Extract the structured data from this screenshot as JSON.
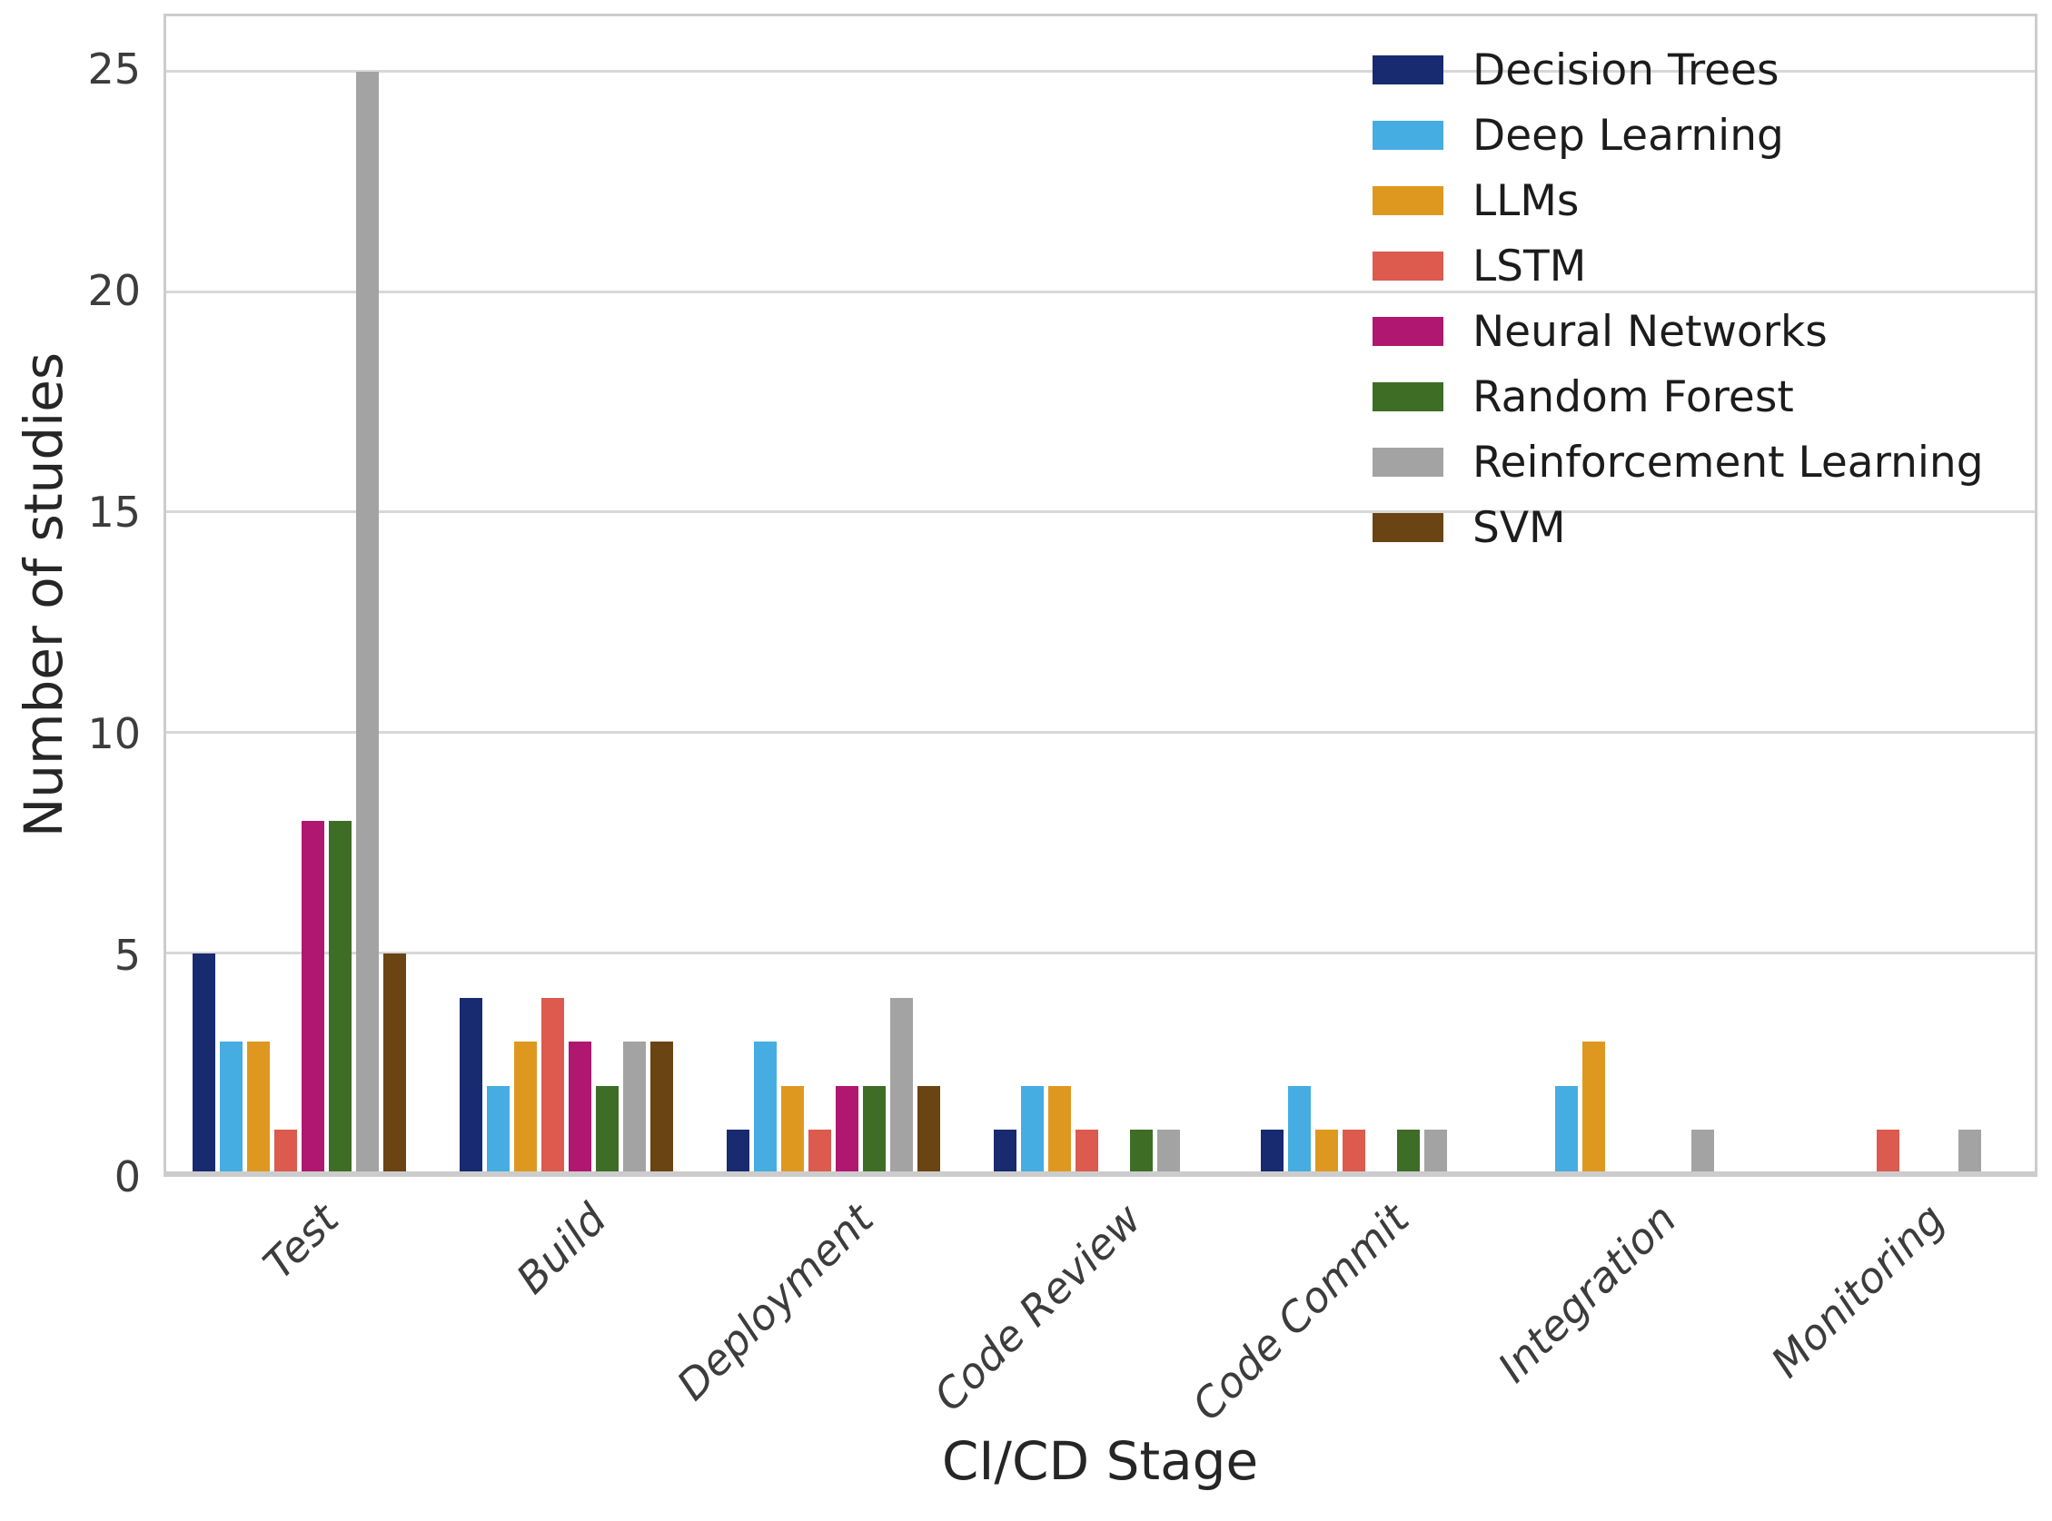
{
  "figure": {
    "background": "#ffffff",
    "grid_color": "#d8d8d8",
    "spine_color": "#cccccc",
    "tick_label_color": "#3c3c3c",
    "axis_label_color": "#262626"
  },
  "chart_data": {
    "type": "bar",
    "title": "",
    "xlabel": "CI/CD Stage",
    "ylabel": "Number of studies",
    "categories": [
      "Test",
      "Build",
      "Deployment",
      "Code Review",
      "Code Commit",
      "Integration",
      "Monitoring"
    ],
    "series": [
      {
        "name": "Decision Trees",
        "color": "#182a70",
        "values": [
          5,
          4,
          1,
          1,
          1,
          0,
          0
        ]
      },
      {
        "name": "Deep Learning",
        "color": "#45ade1",
        "values": [
          3,
          2,
          3,
          2,
          2,
          2,
          0
        ]
      },
      {
        "name": "LLMs",
        "color": "#df981f",
        "values": [
          3,
          3,
          2,
          2,
          1,
          3,
          0
        ]
      },
      {
        "name": "LSTM",
        "color": "#dc5a4e",
        "values": [
          1,
          4,
          1,
          1,
          1,
          0,
          1
        ]
      },
      {
        "name": "Neural Networks",
        "color": "#b01770",
        "values": [
          8,
          3,
          2,
          0,
          0,
          0,
          0
        ]
      },
      {
        "name": "Random Forest",
        "color": "#3e6d26",
        "values": [
          8,
          2,
          2,
          1,
          1,
          0,
          0
        ]
      },
      {
        "name": "Reinforcement Learning",
        "color": "#a3a3a3",
        "values": [
          25,
          3,
          4,
          1,
          1,
          1,
          1
        ]
      },
      {
        "name": "SVM",
        "color": "#6b4413",
        "values": [
          5,
          3,
          2,
          0,
          0,
          0,
          0
        ]
      }
    ],
    "ylim": [
      0,
      26.25
    ],
    "yticks": [
      0,
      5,
      10,
      15,
      20,
      25
    ],
    "grid": true,
    "legend_position": "upper right inside"
  }
}
